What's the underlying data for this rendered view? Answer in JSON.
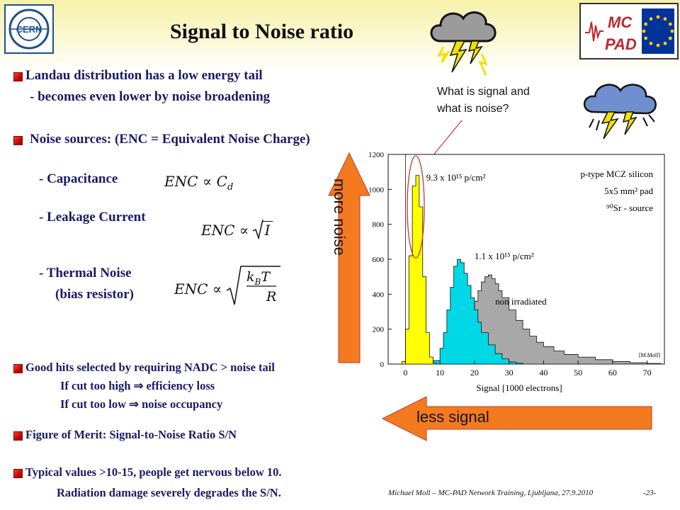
{
  "slide": {
    "title": "Signal to Noise ratio",
    "page_number": "-23-",
    "footer": "Michael Moll – MC-PAD Network Training, Ljubljana, 27.9.2010"
  },
  "logos": {
    "cern": "CERN",
    "mcpad_line1": "MC",
    "mcpad_line2": "PAD"
  },
  "text": {
    "landau_line1": "Landau distribution has a low energy tail",
    "landau_line2": "- becomes even lower by noise broadening",
    "noise_sources": "Noise sources: (ENC = Equivalent Noise Charge)",
    "capacitance": "- Capacitance",
    "leakage": "- Leakage Current",
    "thermal_line1": "- Thermal Noise",
    "thermal_line2": "(bias resistor)",
    "goodhits_line1": "Good hits selected by requiring NADC > noise tail",
    "goodhits_line2": "If cut too high ⇒ efficiency loss",
    "goodhits_line3": "If cut too low ⇒ noise occupancy",
    "merit": "Figure of Merit: Signal-to-Noise Ratio S/N",
    "typical_line1": "Typical values >10-15, people get nervous below 10.",
    "typical_line2": "Radiation damage severely degrades the S/N.",
    "question_line1": "What is signal and",
    "question_line2": "what is noise?",
    "more_noise": "more noise",
    "less_signal": "less signal"
  },
  "formulas": {
    "enc_c": "ENC ∝ C",
    "enc_c_sub": "d",
    "enc_i": "ENC ∝",
    "enc_i_rad": "I",
    "enc_t": "ENC ∝",
    "enc_t_num": "k",
    "enc_t_num_sub": "B",
    "enc_t_num2": "T",
    "enc_t_den": "R"
  },
  "colors": {
    "arrow": "#f47a1f",
    "yellow_series": "#ffff00",
    "cyan_series": "#00d8e6",
    "gray_series": "#a8a8a8",
    "text_blue": "#1a1a66"
  },
  "chart_data": {
    "type": "bar",
    "xlabel": "Signal [1000 electrons]",
    "ylabel": "",
    "xlim": [
      -5,
      75
    ],
    "ylim": [
      0,
      1200
    ],
    "xticks": [
      0,
      10,
      20,
      30,
      40,
      50,
      60,
      70
    ],
    "yticks": [
      0,
      200,
      400,
      600,
      800,
      1000,
      1200
    ],
    "legend_box": [
      "p-type MCZ silicon",
      "5x5 mm² pad",
      "⁹⁰Sr - source"
    ],
    "corner_label": "[M.Moll]",
    "series": [
      {
        "name": "9.3 x 10¹⁵ p/cm²",
        "x": [
          -2,
          -1,
          0,
          1,
          2,
          3,
          4,
          5,
          6,
          7,
          8
        ],
        "values": [
          0,
          15,
          200,
          620,
          1020,
          1080,
          900,
          500,
          180,
          40,
          5
        ]
      },
      {
        "name": "1.1 x 10¹⁵ p/cm²",
        "x": [
          6,
          8,
          10,
          11,
          12,
          13,
          14,
          15,
          16,
          17,
          18,
          19,
          20,
          21,
          22,
          24,
          26,
          28,
          30,
          32
        ],
        "values": [
          5,
          20,
          90,
          180,
          310,
          440,
          560,
          600,
          580,
          520,
          450,
          380,
          310,
          240,
          180,
          110,
          60,
          30,
          12,
          5
        ]
      },
      {
        "name": "non irradiated",
        "x": [
          10,
          14,
          16,
          18,
          20,
          21,
          22,
          23,
          24,
          25,
          26,
          27,
          28,
          30,
          32,
          34,
          36,
          38,
          40,
          43,
          46,
          50,
          55,
          60,
          65,
          70
        ],
        "values": [
          5,
          60,
          140,
          250,
          360,
          420,
          470,
          500,
          510,
          490,
          460,
          420,
          380,
          310,
          250,
          200,
          160,
          125,
          100,
          75,
          55,
          40,
          25,
          15,
          8,
          4
        ]
      }
    ]
  }
}
